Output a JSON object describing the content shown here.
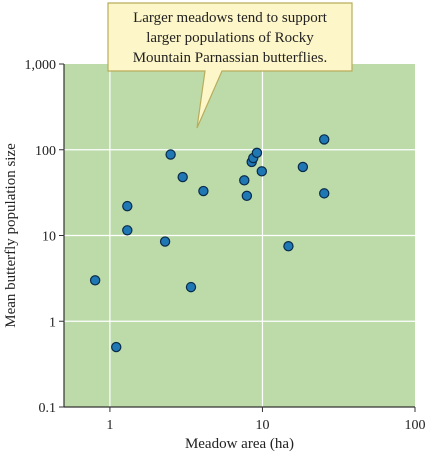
{
  "chart_data": {
    "type": "scatter",
    "xlabel": "Meadow area (ha)",
    "ylabel": "Mean butterfly population size",
    "x_scale": "log",
    "y_scale": "log",
    "xlim": [
      0.5,
      100
    ],
    "ylim": [
      0.1,
      1000
    ],
    "x_ticks": [
      "1",
      "10",
      "100"
    ],
    "y_ticks": [
      "0.1",
      "1",
      "10",
      "100",
      "1,000"
    ],
    "grid": true,
    "plot_background": "#bcdba9",
    "grid_color": "#ffffff",
    "point_color": "#1f78b4",
    "points": [
      {
        "x": 0.8,
        "y": 3.0
      },
      {
        "x": 1.1,
        "y": 0.5
      },
      {
        "x": 1.3,
        "y": 22
      },
      {
        "x": 1.3,
        "y": 11.5
      },
      {
        "x": 2.3,
        "y": 8.5
      },
      {
        "x": 2.5,
        "y": 88
      },
      {
        "x": 3.0,
        "y": 48
      },
      {
        "x": 3.4,
        "y": 2.5
      },
      {
        "x": 4.1,
        "y": 33
      },
      {
        "x": 7.6,
        "y": 44
      },
      {
        "x": 7.9,
        "y": 29
      },
      {
        "x": 8.5,
        "y": 72
      },
      {
        "x": 8.7,
        "y": 80
      },
      {
        "x": 9.2,
        "y": 92
      },
      {
        "x": 9.9,
        "y": 56
      },
      {
        "x": 14.8,
        "y": 7.5
      },
      {
        "x": 18.4,
        "y": 63
      },
      {
        "x": 25.4,
        "y": 31
      },
      {
        "x": 25.4,
        "y": 132
      }
    ],
    "annotation": {
      "lines": [
        "Larger meadows tend to support",
        "larger populations of Rocky",
        "Mountain Parnassian butterflies."
      ],
      "background": "#fdf6c8",
      "border": "#b8ad5c"
    }
  }
}
